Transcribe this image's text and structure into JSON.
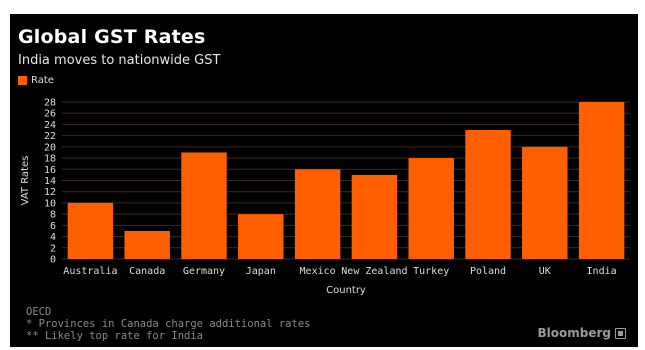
{
  "header": {
    "title": "Global GST Rates",
    "subtitle": "India moves to nationwide GST"
  },
  "legend": {
    "label": "Rate"
  },
  "colors": {
    "bar": "#ff5f00",
    "grid": "#3a2a20",
    "tick": "#dddddd",
    "background": "#000000"
  },
  "chart_data": {
    "type": "bar",
    "title": "Global GST Rates",
    "subtitle": "India moves to nationwide GST",
    "xlabel": "Country",
    "ylabel": "VAT Rates",
    "categories": [
      "Australia",
      "Canada",
      "Germany",
      "Japan",
      "Mexico",
      "New Zealand",
      "Turkey",
      "Poland",
      "UK",
      "India"
    ],
    "series": [
      {
        "name": "Rate",
        "values": [
          10,
          5,
          19,
          8,
          16,
          15,
          18,
          23,
          20,
          28
        ]
      }
    ],
    "ylim": [
      0,
      28
    ],
    "yticks": [
      0,
      2,
      4,
      6,
      8,
      10,
      12,
      14,
      16,
      18,
      20,
      22,
      24,
      26,
      28
    ],
    "grid": true,
    "legend_position": "top-left"
  },
  "footer": {
    "source": "OECD",
    "note1": "* Provinces in Canada charge additional rates",
    "note2": "** Likely top rate for India"
  },
  "brand": {
    "name": "Bloomberg",
    "icon": "bloomberg-icon"
  }
}
